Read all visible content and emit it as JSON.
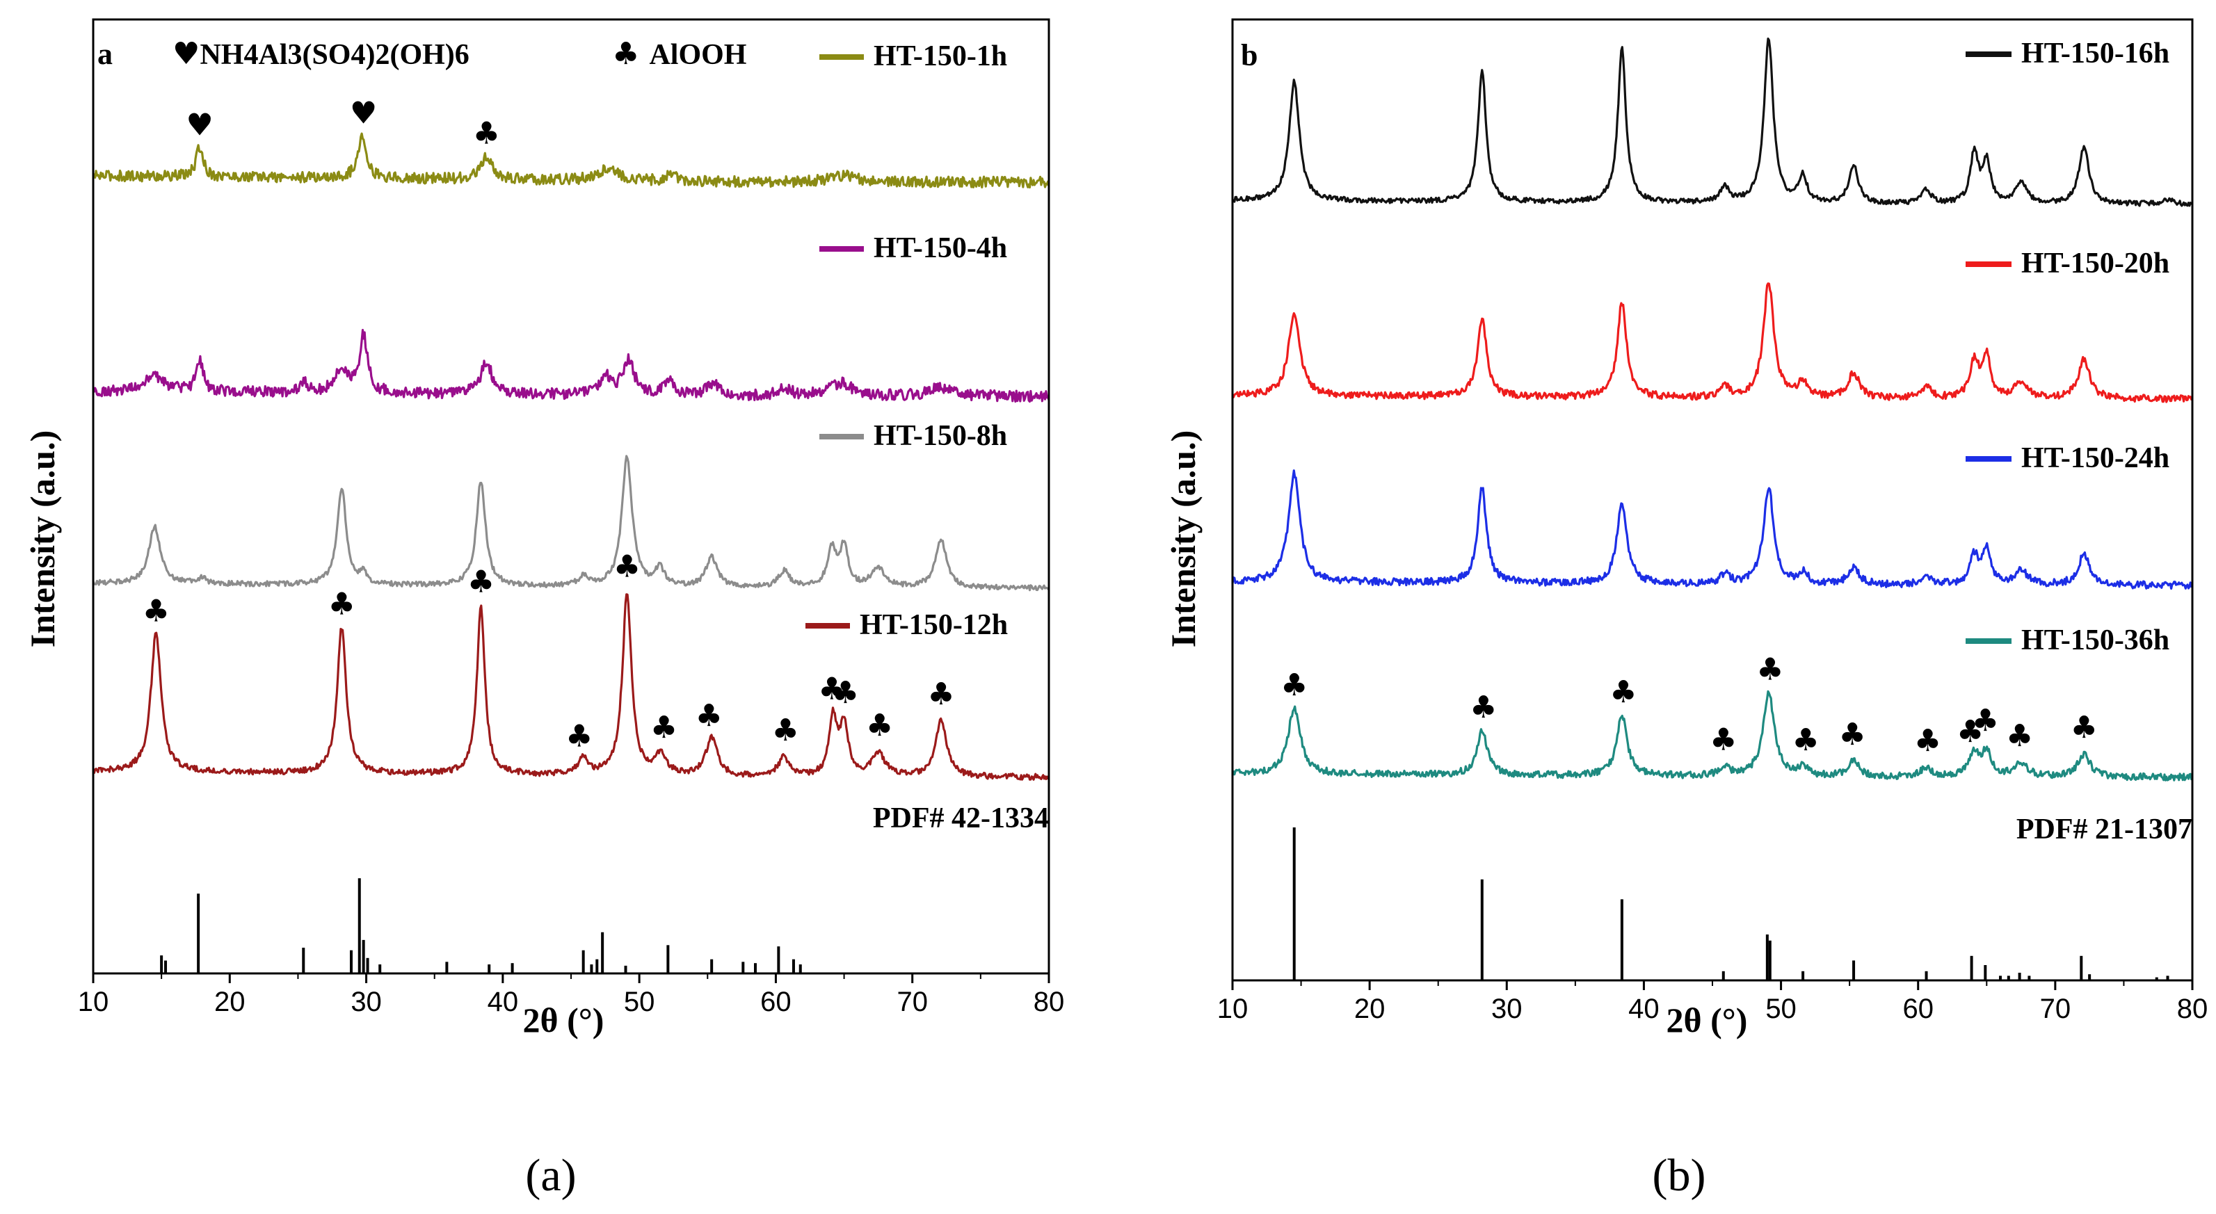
{
  "chart_data": [
    {
      "type": "line",
      "panel": "a",
      "caption": "(a)",
      "xlabel": "2θ (°)",
      "ylabel": "Intensity (a.u.)",
      "xlim": [
        10,
        80
      ],
      "xticks": [
        10,
        20,
        30,
        40,
        50,
        60,
        70,
        80
      ],
      "phase_legend": [
        {
          "symbol": "♥",
          "label": "NH4Al3(SO4)2(OH)6"
        },
        {
          "symbol": "♣",
          "label": "AlOOH"
        }
      ],
      "series": [
        {
          "name": "HT-150-1h",
          "color": "#8b8b14",
          "noise": 5,
          "peaks": [
            [
              17.8,
              28,
              0.3
            ],
            [
              29.7,
              42,
              0.35
            ],
            [
              38.8,
              20,
              0.5
            ],
            [
              47.7,
              12,
              0.8
            ],
            [
              52.3,
              6,
              0.4
            ],
            [
              65,
              6,
              1.2
            ]
          ],
          "markers": [
            {
              "x": 17.8,
              "symbol": "♥"
            },
            {
              "x": 29.8,
              "symbol": "♥"
            },
            {
              "x": 38.8,
              "symbol": "♣"
            }
          ]
        },
        {
          "name": "HT-150-4h",
          "color": "#990e8c",
          "noise": 7,
          "peaks": [
            [
              14.5,
              18,
              1.0
            ],
            [
              17.8,
              40,
              0.3
            ],
            [
              25.5,
              12,
              0.3
            ],
            [
              28.2,
              30,
              0.6
            ],
            [
              29.8,
              70,
              0.35
            ],
            [
              38.8,
              40,
              0.5
            ],
            [
              47.5,
              24,
              0.4
            ],
            [
              49.2,
              44,
              0.5
            ],
            [
              52.2,
              20,
              0.4
            ],
            [
              55.4,
              14,
              0.6
            ],
            [
              60.6,
              10,
              0.6
            ],
            [
              64.8,
              16,
              1.0
            ],
            [
              72,
              12,
              0.8
            ]
          ],
          "markers": []
        },
        {
          "name": "HT-150-8h",
          "color": "#8c8c8c",
          "noise": 3,
          "peaks": [
            [
              14.5,
              70,
              0.5
            ],
            [
              18,
              8,
              0.3
            ],
            [
              28.2,
              118,
              0.4
            ],
            [
              29.8,
              12,
              0.3
            ],
            [
              38.4,
              128,
              0.4
            ],
            [
              45.9,
              12,
              0.4
            ],
            [
              49.1,
              158,
              0.45
            ],
            [
              51.5,
              22,
              0.4
            ],
            [
              55.3,
              36,
              0.5
            ],
            [
              60.6,
              20,
              0.5
            ],
            [
              64.1,
              46,
              0.4
            ],
            [
              65,
              50,
              0.35
            ],
            [
              67.5,
              24,
              0.6
            ],
            [
              72.1,
              58,
              0.5
            ]
          ],
          "markers": []
        },
        {
          "name": "HT-150-12h",
          "color": "#9b1a1a",
          "noise": 3,
          "peaks": [
            [
              14.6,
              145,
              0.45
            ],
            [
              28.2,
              152,
              0.4
            ],
            [
              38.4,
              175,
              0.35
            ],
            [
              45.9,
              18,
              0.4
            ],
            [
              49.1,
              190,
              0.4
            ],
            [
              51.6,
              22,
              0.45
            ],
            [
              55.3,
              40,
              0.5
            ],
            [
              60.6,
              20,
              0.5
            ],
            [
              64.2,
              60,
              0.35
            ],
            [
              65,
              54,
              0.35
            ],
            [
              67.5,
              24,
              0.6
            ],
            [
              72.1,
              58,
              0.5
            ]
          ],
          "markers": [
            {
              "x": 14.6,
              "symbol": "♣"
            },
            {
              "x": 28.2,
              "symbol": "♣"
            },
            {
              "x": 38.4,
              "symbol": "♣"
            },
            {
              "x": 45.6,
              "symbol": "♣"
            },
            {
              "x": 49.1,
              "symbol": "♣"
            },
            {
              "x": 51.8,
              "symbol": "♣"
            },
            {
              "x": 55.1,
              "symbol": "♣"
            },
            {
              "x": 60.7,
              "symbol": "♣"
            },
            {
              "x": 64.1,
              "symbol": "♣"
            },
            {
              "x": 65.1,
              "symbol": "♣"
            },
            {
              "x": 67.6,
              "symbol": "♣"
            },
            {
              "x": 72.1,
              "symbol": "♣"
            }
          ]
        }
      ],
      "reference": {
        "label": "PDF# 42-1334",
        "lines": [
          [
            15,
            14
          ],
          [
            15.3,
            10
          ],
          [
            17.7,
            62
          ],
          [
            25.4,
            20
          ],
          [
            28.9,
            18
          ],
          [
            29.5,
            74
          ],
          [
            29.8,
            26
          ],
          [
            30.1,
            12
          ],
          [
            31,
            7
          ],
          [
            35.9,
            9
          ],
          [
            39,
            7
          ],
          [
            40.7,
            8
          ],
          [
            45.9,
            18
          ],
          [
            46.5,
            7
          ],
          [
            46.9,
            11
          ],
          [
            47.3,
            32
          ],
          [
            49,
            6
          ],
          [
            52.1,
            22
          ],
          [
            55.3,
            11
          ],
          [
            57.6,
            9
          ],
          [
            58.5,
            8
          ],
          [
            60.2,
            21
          ],
          [
            61.3,
            11
          ],
          [
            61.8,
            7
          ]
        ]
      }
    },
    {
      "type": "line",
      "panel": "b",
      "caption": "(b)",
      "xlabel": "2θ (°)",
      "ylabel": "Intensity (a.u.)",
      "xlim": [
        10,
        80
      ],
      "xticks": [
        10,
        20,
        30,
        40,
        50,
        60,
        70,
        80
      ],
      "series": [
        {
          "name": "HT-150-16h",
          "color": "#111111",
          "noise": 2,
          "peaks": [
            [
              14.5,
              98,
              0.45
            ],
            [
              28.2,
              108,
              0.35
            ],
            [
              38.4,
              128,
              0.35
            ],
            [
              45.9,
              12,
              0.4
            ],
            [
              49.1,
              135,
              0.4
            ],
            [
              51.6,
              22,
              0.35
            ],
            [
              55.3,
              32,
              0.4
            ],
            [
              60.6,
              12,
              0.4
            ],
            [
              64.1,
              42,
              0.35
            ],
            [
              65,
              34,
              0.35
            ],
            [
              67.5,
              18,
              0.5
            ],
            [
              72.1,
              46,
              0.45
            ],
            [
              78.2,
              4,
              0.4
            ]
          ],
          "markers": []
        },
        {
          "name": "HT-150-20h",
          "color": "#ee1c1c",
          "noise": 3,
          "peaks": [
            [
              14.5,
              72,
              0.5
            ],
            [
              28.2,
              68,
              0.4
            ],
            [
              38.4,
              82,
              0.4
            ],
            [
              45.9,
              10,
              0.4
            ],
            [
              49.1,
              100,
              0.45
            ],
            [
              51.6,
              14,
              0.4
            ],
            [
              55.3,
              22,
              0.5
            ],
            [
              60.6,
              10,
              0.5
            ],
            [
              64.1,
              32,
              0.4
            ],
            [
              65,
              36,
              0.35
            ],
            [
              67.5,
              14,
              0.6
            ],
            [
              72.1,
              34,
              0.5
            ]
          ],
          "markers": []
        },
        {
          "name": "HT-150-24h",
          "color": "#1c2ee6",
          "noise": 3,
          "peaks": [
            [
              14.5,
              92,
              0.5
            ],
            [
              28.2,
              80,
              0.4
            ],
            [
              38.4,
              66,
              0.45
            ],
            [
              45.9,
              8,
              0.4
            ],
            [
              49.1,
              82,
              0.45
            ],
            [
              51.6,
              10,
              0.4
            ],
            [
              55.3,
              14,
              0.5
            ],
            [
              60.6,
              8,
              0.5
            ],
            [
              64.1,
              24,
              0.4
            ],
            [
              65,
              30,
              0.35
            ],
            [
              67.5,
              12,
              0.6
            ],
            [
              72.1,
              26,
              0.5
            ]
          ],
          "markers": []
        },
        {
          "name": "HT-150-36h",
          "color": "#1e8a80",
          "noise": 3,
          "peaks": [
            [
              14.5,
              58,
              0.55
            ],
            [
              28.2,
              40,
              0.45
            ],
            [
              38.4,
              54,
              0.45
            ],
            [
              45.9,
              8,
              0.4
            ],
            [
              49.1,
              74,
              0.5
            ],
            [
              51.6,
              8,
              0.4
            ],
            [
              55.3,
              14,
              0.5
            ],
            [
              60.6,
              8,
              0.5
            ],
            [
              64.1,
              20,
              0.45
            ],
            [
              65,
              22,
              0.4
            ],
            [
              67.5,
              12,
              0.6
            ],
            [
              72.1,
              20,
              0.55
            ]
          ],
          "markers": [
            {
              "x": 14.5,
              "symbol": "♣"
            },
            {
              "x": 28.3,
              "symbol": "♣"
            },
            {
              "x": 38.5,
              "symbol": "♣"
            },
            {
              "x": 45.8,
              "symbol": "♣"
            },
            {
              "x": 49.2,
              "symbol": "♣"
            },
            {
              "x": 51.8,
              "symbol": "♣"
            },
            {
              "x": 55.2,
              "symbol": "♣"
            },
            {
              "x": 60.7,
              "symbol": "♣"
            },
            {
              "x": 63.8,
              "symbol": "♣"
            },
            {
              "x": 64.9,
              "symbol": "♣"
            },
            {
              "x": 67.4,
              "symbol": "♣"
            },
            {
              "x": 72.1,
              "symbol": "♣"
            }
          ]
        }
      ],
      "reference": {
        "label": "PDF# 21-1307",
        "lines": [
          [
            14.5,
            100
          ],
          [
            28.2,
            66
          ],
          [
            38.4,
            53
          ],
          [
            45.8,
            6
          ],
          [
            49,
            30
          ],
          [
            49.2,
            26
          ],
          [
            51.6,
            6
          ],
          [
            55.3,
            13
          ],
          [
            60.6,
            6
          ],
          [
            63.9,
            16
          ],
          [
            64.9,
            10
          ],
          [
            66,
            3
          ],
          [
            66.6,
            3
          ],
          [
            67.4,
            5
          ],
          [
            68.1,
            3
          ],
          [
            71.9,
            16
          ],
          [
            72.5,
            4
          ],
          [
            77.4,
            2
          ],
          [
            78.2,
            3
          ]
        ]
      }
    }
  ]
}
